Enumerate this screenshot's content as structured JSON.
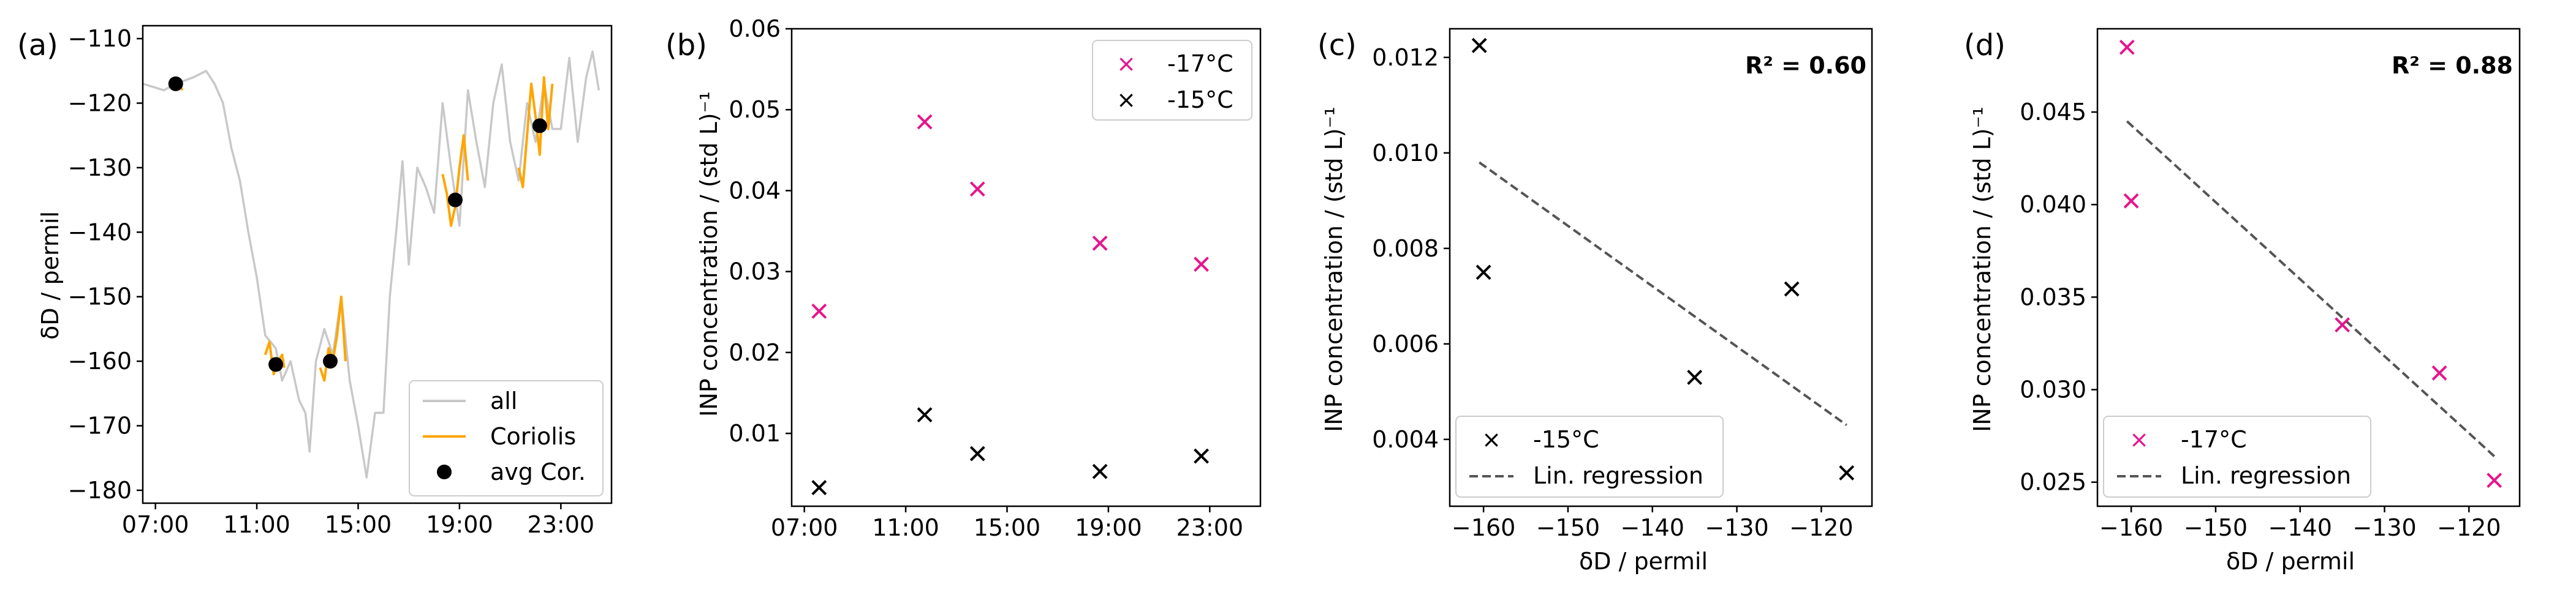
{
  "colors": {
    "all": "#c8c8c8",
    "coriolis": "#ffa500",
    "avg": "#000000",
    "m17": "#e6158c",
    "m15": "#000000",
    "reg": "#555555"
  },
  "panels": {
    "a": {
      "letter": "(a)",
      "ylabel": "δD / permil",
      "legend": [
        "all",
        "Coriolis",
        "avg Cor."
      ]
    },
    "b": {
      "letter": "(b)",
      "ylabel": "INP concentration / (std L)⁻¹",
      "legend": [
        "-17°C",
        "-15°C"
      ]
    },
    "c": {
      "letter": "(c)",
      "ylabel": "INP concentration / (std L)⁻¹",
      "xlabel": "δD / permil",
      "r2": "R² = 0.60",
      "legend": [
        "-15°C",
        "Lin. regression"
      ]
    },
    "d": {
      "letter": "(d)",
      "ylabel": "INP concentration / (std L)⁻¹",
      "xlabel": "δD / permil",
      "r2": "R² = 0.88",
      "legend": [
        "-17°C",
        "Lin. regression"
      ]
    }
  },
  "chart_data": [
    {
      "panel": "a",
      "type": "line",
      "ylabel": "δD / permil",
      "ylim": [
        -182,
        -108
      ],
      "xlim": [
        "06:30",
        "25:00"
      ],
      "yticks": [
        -110,
        -120,
        -130,
        -140,
        -150,
        -160,
        -170,
        -180
      ],
      "xticks": [
        "07:00",
        "11:00",
        "15:00",
        "19:00",
        "23:00"
      ],
      "series": [
        {
          "name": "all",
          "x": [
            "06:30",
            "07:20",
            "07:48",
            "08:30",
            "09:00",
            "09:20",
            "09:40",
            "10:00",
            "10:20",
            "10:40",
            "11:00",
            "11:20",
            "11:45",
            "12:00",
            "12:20",
            "12:40",
            "12:55",
            "13:05",
            "13:20",
            "13:40",
            "14:00",
            "14:20",
            "14:40",
            "15:00",
            "15:20",
            "15:40",
            "16:00",
            "16:15",
            "16:30",
            "16:45",
            "17:00",
            "17:20",
            "17:40",
            "18:00",
            "18:20",
            "18:40",
            "19:00",
            "19:20",
            "19:40",
            "20:00",
            "20:20",
            "20:40",
            "21:00",
            "21:20",
            "21:40",
            "22:00",
            "22:20",
            "22:40",
            "23:00",
            "23:20",
            "23:40",
            "24:00",
            "24:15",
            "24:30"
          ],
          "y": [
            -117,
            -118,
            -117,
            -116,
            -115,
            -117,
            -120,
            -127,
            -132,
            -140,
            -147,
            -156,
            -158,
            -163,
            -160,
            -166,
            -168,
            -174,
            -160,
            -155,
            -159,
            -150,
            -163,
            -170,
            -178,
            -168,
            -168,
            -150,
            -140,
            -129,
            -145,
            -130,
            -133,
            -137,
            -120,
            -130,
            -139,
            -118,
            -126,
            -133,
            -120,
            -114,
            -126,
            -132,
            -120,
            -126,
            -117,
            -124,
            -124,
            -113,
            -126,
            -116,
            -112,
            -118
          ]
        },
        {
          "name": "Coriolis",
          "segments": [
            {
              "x": [
                "07:40",
                "07:48",
                "07:56",
                "08:04"
              ],
              "y": [
                -118,
                -117,
                -117,
                -118
              ]
            },
            {
              "x": [
                "11:20",
                "11:30",
                "11:40",
                "11:50",
                "12:00",
                "12:05"
              ],
              "y": [
                -159,
                -157,
                -162,
                -160,
                -159,
                -161
              ]
            },
            {
              "x": [
                "13:30",
                "13:40",
                "13:50",
                "14:00",
                "14:10",
                "14:20",
                "14:30"
              ],
              "y": [
                -161,
                -163,
                -158,
                -160,
                -156,
                -150,
                -160
              ]
            },
            {
              "x": [
                "18:20",
                "18:30",
                "18:40",
                "18:50",
                "19:00",
                "19:10",
                "19:20"
              ],
              "y": [
                -131,
                -134,
                -139,
                -136,
                -130,
                -125,
                -132
              ]
            },
            {
              "x": [
                "21:20",
                "21:30",
                "21:40",
                "21:50",
                "22:00",
                "22:10",
                "22:20",
                "22:30",
                "22:40"
              ],
              "y": [
                -130,
                -133,
                -125,
                -117,
                -122,
                -128,
                -116,
                -124,
                -117
              ]
            }
          ]
        },
        {
          "name": "avg Cor.",
          "x": [
            "07:48",
            "11:45",
            "13:54",
            "18:50",
            "22:10"
          ],
          "y": [
            -117,
            -160.5,
            -160,
            -135,
            -123.5
          ]
        }
      ]
    },
    {
      "panel": "b",
      "type": "scatter",
      "ylabel": "INP concentration / (std L)⁻¹",
      "ylim": [
        0.001,
        0.06
      ],
      "yticks": [
        0.01,
        0.02,
        0.03,
        0.04,
        0.05,
        0.06
      ],
      "xticks": [
        "07:00",
        "11:00",
        "15:00",
        "19:00",
        "23:00"
      ],
      "legend_position": "upper right",
      "series": [
        {
          "name": "-17°C",
          "x": [
            "07:35",
            "11:45",
            "13:50",
            "18:40",
            "22:40"
          ],
          "y": [
            0.0251,
            0.0485,
            0.0402,
            0.0335,
            0.0309
          ]
        },
        {
          "name": "-15°C",
          "x": [
            "07:35",
            "11:45",
            "13:50",
            "18:40",
            "22:40"
          ],
          "y": [
            0.0033,
            0.0123,
            0.0075,
            0.0053,
            0.0072
          ]
        }
      ]
    },
    {
      "panel": "c",
      "type": "scatter",
      "xlabel": "δD / permil",
      "ylabel": "INP concentration / (std L)⁻¹",
      "xlim": [
        -164,
        -114
      ],
      "ylim": [
        0.0026,
        0.0126
      ],
      "xticks": [
        -160,
        -150,
        -140,
        -130,
        -120
      ],
      "yticks": [
        0.004,
        0.006,
        0.008,
        0.01,
        0.012
      ],
      "legend_position": "lower left",
      "series": [
        {
          "name": "-15°C",
          "x": [
            -160.5,
            -160,
            -135,
            -123.5,
            -117
          ],
          "y": [
            0.01225,
            0.0075,
            0.0053,
            0.00715,
            0.0033
          ]
        },
        {
          "name": "Lin. regression",
          "x": [
            -160.5,
            -117
          ],
          "y": [
            0.0098,
            0.0043
          ]
        }
      ],
      "annotation": "R² = 0.60"
    },
    {
      "panel": "d",
      "type": "scatter",
      "xlabel": "δD / permil",
      "ylabel": "INP concentration / (std L)⁻¹",
      "xlim": [
        -164,
        -114
      ],
      "ylim": [
        0.0237,
        0.0495
      ],
      "xticks": [
        -160,
        -150,
        -140,
        -130,
        -120
      ],
      "yticks": [
        0.025,
        0.03,
        0.035,
        0.04,
        0.045
      ],
      "legend_position": "lower left",
      "series": [
        {
          "name": "-17°C",
          "x": [
            -160.5,
            -160,
            -135,
            -123.5,
            -117
          ],
          "y": [
            0.0485,
            0.0402,
            0.0335,
            0.0309,
            0.0251
          ]
        },
        {
          "name": "Lin. regression",
          "x": [
            -160.5,
            -117
          ],
          "y": [
            0.0445,
            0.0264
          ]
        }
      ],
      "annotation": "R² = 0.88"
    }
  ]
}
